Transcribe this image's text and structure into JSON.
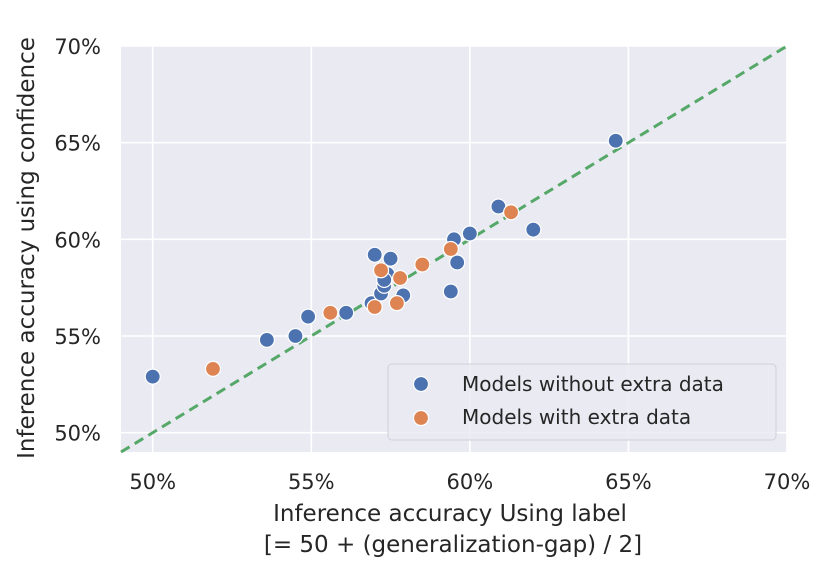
{
  "chart_data": {
    "type": "scatter",
    "title": "",
    "xlabel": [
      "Inference accuracy Using label",
      "[= 50 + (generalization-gap) / 2]"
    ],
    "ylabel": "Inference accuracy using confidence",
    "xlim": [
      49.0,
      70.0
    ],
    "ylim": [
      49.0,
      70.0
    ],
    "xticks": [
      50,
      55,
      60,
      65,
      70
    ],
    "yticks": [
      50,
      55,
      60,
      65,
      70
    ],
    "xtick_labels": [
      "50%",
      "55%",
      "60%",
      "65%",
      "70%"
    ],
    "ytick_labels": [
      "50%",
      "55%",
      "60%",
      "65%",
      "70%"
    ],
    "grid": true,
    "legend_position": "lower-right",
    "reference_line": {
      "type": "y=x",
      "style": "dashed",
      "color": "#55a868"
    },
    "series": [
      {
        "name": "Models without extra data",
        "color": "#4c72b0",
        "points": [
          [
            50.0,
            52.9
          ],
          [
            53.6,
            54.8
          ],
          [
            54.5,
            55.0
          ],
          [
            54.9,
            56.0
          ],
          [
            56.1,
            56.2
          ],
          [
            56.9,
            56.7
          ],
          [
            57.0,
            59.2
          ],
          [
            57.2,
            57.2
          ],
          [
            57.3,
            57.6
          ],
          [
            57.4,
            58.2
          ],
          [
            57.5,
            59.0
          ],
          [
            57.3,
            57.9
          ],
          [
            57.9,
            57.1
          ],
          [
            59.4,
            57.3
          ],
          [
            59.5,
            60.0
          ],
          [
            59.6,
            58.8
          ],
          [
            60.0,
            60.3
          ],
          [
            60.9,
            61.7
          ],
          [
            62.0,
            60.5
          ],
          [
            64.6,
            65.1
          ]
        ]
      },
      {
        "name": "Models with extra data",
        "color": "#dd8452",
        "points": [
          [
            51.9,
            53.3
          ],
          [
            55.6,
            56.2
          ],
          [
            57.0,
            56.5
          ],
          [
            57.2,
            58.4
          ],
          [
            57.8,
            58.0
          ],
          [
            57.7,
            56.7
          ],
          [
            58.5,
            58.7
          ],
          [
            59.4,
            59.5
          ],
          [
            61.3,
            61.4
          ]
        ]
      }
    ]
  }
}
